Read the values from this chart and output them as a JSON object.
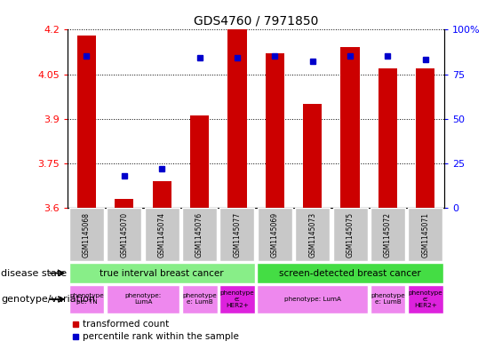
{
  "title": "GDS4760 / 7971850",
  "samples": [
    "GSM1145068",
    "GSM1145070",
    "GSM1145074",
    "GSM1145076",
    "GSM1145077",
    "GSM1145069",
    "GSM1145073",
    "GSM1145075",
    "GSM1145072",
    "GSM1145071"
  ],
  "transformed_count": [
    4.18,
    3.63,
    3.69,
    3.91,
    4.2,
    4.12,
    3.95,
    4.14,
    4.07,
    4.07
  ],
  "percentile_rank": [
    85,
    18,
    22,
    84,
    84,
    85,
    82,
    85,
    85,
    83
  ],
  "ylim": [
    3.6,
    4.2
  ],
  "y2lim": [
    0,
    100
  ],
  "yticks": [
    3.6,
    3.75,
    3.9,
    4.05,
    4.2
  ],
  "y2ticks": [
    0,
    25,
    50,
    75,
    100
  ],
  "bar_color": "#cc0000",
  "percentile_color": "#0000cc",
  "bar_width": 0.5,
  "geno_groups": [
    {
      "label": "phenotype\npe: TN",
      "start": 0,
      "end": 0,
      "color": "#ee88ee"
    },
    {
      "label": "phenotype:\nLumA",
      "start": 1,
      "end": 2,
      "color": "#ee88ee"
    },
    {
      "label": "phenotype\ne: LumB",
      "start": 3,
      "end": 3,
      "color": "#ee88ee"
    },
    {
      "label": "phenotype\ne:\nHER2+",
      "start": 4,
      "end": 4,
      "color": "#dd22dd"
    },
    {
      "label": "phenotype: LumA",
      "start": 5,
      "end": 7,
      "color": "#ee88ee"
    },
    {
      "label": "phenotype\ne: LumB",
      "start": 8,
      "end": 8,
      "color": "#ee88ee"
    },
    {
      "label": "phenotype\ne:\nHER2+",
      "start": 9,
      "end": 9,
      "color": "#dd22dd"
    }
  ],
  "legend_items": [
    {
      "label": "transformed count",
      "color": "#cc0000"
    },
    {
      "label": "percentile rank within the sample",
      "color": "#0000cc"
    }
  ]
}
